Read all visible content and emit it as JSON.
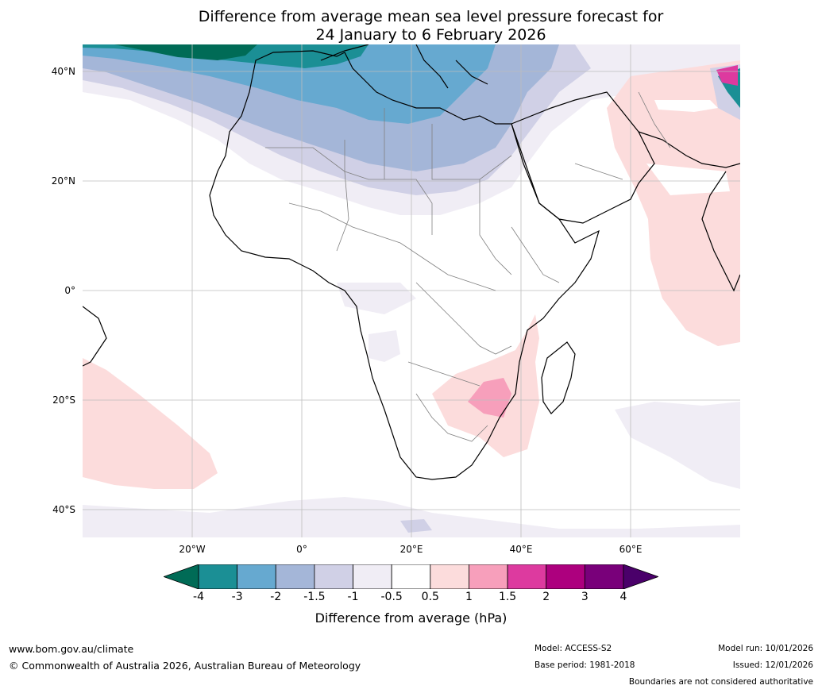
{
  "title": {
    "line1": "Difference from average mean sea level pressure forecast for",
    "line2": "24 January to 6 February 2026"
  },
  "axes": {
    "latitude_labels": [
      "40°N",
      "20°N",
      "0°",
      "20°S",
      "40°S"
    ],
    "longitude_labels": [
      "20°W",
      "0°",
      "20°E",
      "40°E",
      "60°E"
    ]
  },
  "legend": {
    "ticks": [
      "-4",
      "-3",
      "-2",
      "-1.5",
      "-1",
      "-0.5",
      "0.5",
      "1",
      "1.5",
      "2",
      "3",
      "4"
    ],
    "colors": [
      "#006b56",
      "#1b8f95",
      "#66a9d0",
      "#a4b6d8",
      "#d0d0e6",
      "#f0edf5",
      "#ffffff",
      "#fcdcdc",
      "#f79fbb",
      "#dd3a9f",
      "#ad007e",
      "#79007a",
      "#4a006a"
    ],
    "caption": "Difference from average (hPa)"
  },
  "footer": {
    "website": "www.bom.gov.au/climate",
    "copyright": "© Commonwealth of Australia 2026, Australian Bureau of Meteorology",
    "model": "Model: ACCESS-S2",
    "base_period": "Base period: 1981-2018",
    "model_run": "Model run: 10/01/2026",
    "issued": "Issued: 12/01/2026",
    "disclaimer": "Boundaries are not considered authoritative"
  }
}
